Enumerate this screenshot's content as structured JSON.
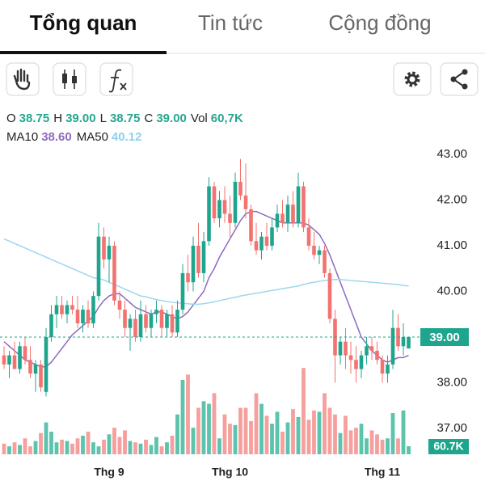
{
  "tabs": [
    "Tổng quan",
    "Tin tức",
    "Cộng đồng"
  ],
  "header": {
    "items": [
      {
        "label": "O",
        "value": "38.75"
      },
      {
        "label": "H",
        "value": "39.00"
      },
      {
        "label": "L",
        "value": "38.75"
      },
      {
        "label": "C",
        "value": "39.00"
      },
      {
        "label": "Vol",
        "value": "60,7K"
      }
    ],
    "ma": [
      {
        "label": "MA10",
        "value": "38.60"
      },
      {
        "label": "MA50",
        "value": "40.12"
      }
    ]
  },
  "chart_data": {
    "type": "candlestick",
    "ylim": [
      37,
      43
    ],
    "yticks": [
      {
        "value": 37,
        "label": "37.00"
      },
      {
        "value": 38,
        "label": "38.00"
      },
      {
        "value": 39,
        "label": "39.00"
      },
      {
        "value": 40,
        "label": "40.00"
      },
      {
        "value": 41,
        "label": "41.00"
      },
      {
        "value": 42,
        "label": "42.00"
      },
      {
        "value": 43,
        "label": "43.00"
      }
    ],
    "xticks": [
      {
        "value": 20,
        "label": "Thg 9"
      },
      {
        "value": 43,
        "label": "Thg 10"
      },
      {
        "value": 72,
        "label": "Thg 11"
      }
    ],
    "up_color": "#1fa58d",
    "down_color": "#f2736f",
    "candles": [
      [
        38.6,
        38.8,
        38.3,
        38.4
      ],
      [
        38.4,
        38.7,
        38.1,
        38.6
      ],
      [
        38.6,
        38.9,
        38.3,
        38.3
      ],
      [
        38.3,
        38.9,
        38.2,
        38.8
      ],
      [
        38.8,
        39.0,
        38.4,
        38.5
      ],
      [
        38.5,
        38.8,
        38.1,
        38.2
      ],
      [
        38.2,
        38.5,
        37.8,
        38.4
      ],
      [
        38.4,
        38.5,
        37.8,
        37.9
      ],
      [
        37.8,
        39.2,
        37.7,
        39.0
      ],
      [
        39.0,
        39.7,
        38.9,
        39.5
      ],
      [
        39.5,
        39.9,
        39.2,
        39.7
      ],
      [
        39.7,
        39.9,
        39.4,
        39.5
      ],
      [
        39.5,
        39.8,
        39.3,
        39.7
      ],
      [
        39.7,
        39.9,
        39.5,
        39.6
      ],
      [
        39.6,
        39.9,
        39.2,
        39.3
      ],
      [
        39.3,
        39.7,
        39.1,
        39.6
      ],
      [
        39.6,
        39.8,
        39.2,
        39.3
      ],
      [
        39.3,
        40.0,
        39.2,
        39.9
      ],
      [
        39.9,
        41.5,
        39.8,
        41.2
      ],
      [
        41.2,
        41.4,
        40.5,
        40.7
      ],
      [
        40.7,
        41.2,
        40.2,
        41.0
      ],
      [
        41.0,
        41.1,
        39.7,
        39.8
      ],
      [
        39.8,
        40.0,
        39.4,
        39.6
      ],
      [
        39.6,
        39.8,
        39.0,
        39.2
      ],
      [
        39.2,
        39.5,
        38.7,
        39.4
      ],
      [
        39.4,
        39.6,
        38.9,
        39.0
      ],
      [
        39.0,
        39.8,
        38.9,
        39.5
      ],
      [
        39.5,
        39.7,
        39.1,
        39.2
      ],
      [
        39.2,
        39.6,
        39.0,
        39.5
      ],
      [
        39.5,
        39.8,
        39.3,
        39.6
      ],
      [
        39.6,
        39.7,
        39.0,
        39.2
      ],
      [
        39.2,
        39.6,
        39.0,
        39.5
      ],
      [
        39.5,
        39.7,
        39.0,
        39.1
      ],
      [
        39.1,
        39.8,
        39.0,
        39.6
      ],
      [
        39.6,
        40.6,
        39.5,
        40.4
      ],
      [
        40.4,
        40.8,
        40.0,
        40.2
      ],
      [
        40.2,
        41.2,
        40.0,
        41.0
      ],
      [
        41.0,
        41.5,
        40.3,
        40.4
      ],
      [
        40.4,
        41.3,
        40.2,
        41.1
      ],
      [
        41.1,
        42.5,
        41.0,
        42.3
      ],
      [
        42.3,
        42.4,
        41.5,
        41.6
      ],
      [
        41.6,
        42.2,
        41.4,
        42.0
      ],
      [
        42.0,
        42.3,
        41.5,
        41.7
      ],
      [
        41.7,
        42.1,
        41.2,
        41.5
      ],
      [
        41.5,
        42.6,
        41.4,
        42.4
      ],
      [
        42.4,
        42.9,
        42.0,
        42.1
      ],
      [
        42.1,
        42.8,
        41.6,
        41.8
      ],
      [
        41.8,
        41.9,
        41.0,
        41.1
      ],
      [
        41.1,
        41.5,
        40.8,
        40.9
      ],
      [
        40.9,
        41.3,
        40.7,
        41.2
      ],
      [
        41.2,
        41.5,
        40.9,
        41.0
      ],
      [
        41.0,
        41.6,
        40.9,
        41.4
      ],
      [
        41.4,
        41.9,
        41.3,
        41.7
      ],
      [
        41.7,
        42.0,
        41.4,
        41.5
      ],
      [
        41.5,
        42.1,
        41.3,
        41.9
      ],
      [
        41.9,
        42.2,
        41.4,
        41.5
      ],
      [
        41.5,
        42.6,
        41.4,
        42.3
      ],
      [
        42.3,
        42.4,
        41.3,
        41.4
      ],
      [
        41.4,
        41.6,
        40.9,
        41.0
      ],
      [
        41.0,
        41.3,
        40.7,
        40.8
      ],
      [
        40.8,
        41.0,
        40.6,
        40.9
      ],
      [
        40.9,
        41.0,
        40.3,
        40.4
      ],
      [
        40.4,
        40.5,
        39.3,
        39.4
      ],
      [
        39.4,
        39.6,
        38.0,
        38.6
      ],
      [
        38.6,
        39.0,
        38.4,
        38.9
      ],
      [
        38.9,
        39.2,
        38.3,
        38.6
      ],
      [
        38.6,
        38.9,
        38.2,
        38.5
      ],
      [
        38.5,
        38.8,
        38.0,
        38.3
      ],
      [
        38.3,
        38.7,
        38.1,
        38.6
      ],
      [
        38.6,
        39.0,
        38.4,
        38.8
      ],
      [
        38.8,
        39.0,
        38.5,
        38.7
      ],
      [
        38.7,
        38.9,
        38.4,
        38.5
      ],
      [
        38.5,
        38.6,
        38.0,
        38.2
      ],
      [
        38.2,
        38.6,
        38.0,
        38.4
      ],
      [
        38.4,
        39.6,
        38.3,
        39.2
      ],
      [
        39.2,
        39.5,
        38.7,
        38.8
      ],
      [
        38.8,
        39.3,
        38.6,
        39.0
      ],
      [
        38.75,
        39.0,
        38.75,
        39.0
      ]
    ],
    "series": [
      {
        "name": "MA10",
        "color": "#8e6bbf",
        "values": [
          38.9,
          38.8,
          38.7,
          38.6,
          38.5,
          38.45,
          38.4,
          38.35,
          38.35,
          38.45,
          38.6,
          38.75,
          38.9,
          39.05,
          39.15,
          39.25,
          39.35,
          39.45,
          39.65,
          39.8,
          39.9,
          39.95,
          39.95,
          39.85,
          39.75,
          39.65,
          39.6,
          39.55,
          39.5,
          39.55,
          39.55,
          39.5,
          39.45,
          39.4,
          39.45,
          39.55,
          39.7,
          39.85,
          40.0,
          40.3,
          40.5,
          40.75,
          40.95,
          41.15,
          41.35,
          41.55,
          41.7,
          41.75,
          41.75,
          41.7,
          41.65,
          41.6,
          41.55,
          41.5,
          41.5,
          41.5,
          41.5,
          41.5,
          41.45,
          41.35,
          41.25,
          41.05,
          40.8,
          40.5,
          40.2,
          39.9,
          39.6,
          39.3,
          39.0,
          38.85,
          38.7,
          38.6,
          38.5,
          38.45,
          38.5,
          38.55,
          38.55,
          38.6
        ]
      },
      {
        "name": "MA50",
        "color": "#9fd6ee",
        "values": [
          41.15,
          41.1,
          41.05,
          41.0,
          40.95,
          40.9,
          40.85,
          40.8,
          40.75,
          40.7,
          40.65,
          40.6,
          40.55,
          40.5,
          40.45,
          40.4,
          40.35,
          40.3,
          40.28,
          40.25,
          40.2,
          40.15,
          40.1,
          40.05,
          40.0,
          39.95,
          39.9,
          39.88,
          39.85,
          39.82,
          39.8,
          39.78,
          39.76,
          39.75,
          39.74,
          39.73,
          39.72,
          39.72,
          39.73,
          39.75,
          39.77,
          39.8,
          39.82,
          39.85,
          39.87,
          39.9,
          39.92,
          39.94,
          39.96,
          39.98,
          40.0,
          40.02,
          40.04,
          40.06,
          40.08,
          40.1,
          40.12,
          40.15,
          40.18,
          40.2,
          40.22,
          40.24,
          40.25,
          40.26,
          40.26,
          40.25,
          40.24,
          40.23,
          40.22,
          40.21,
          40.2,
          40.19,
          40.18,
          40.17,
          40.16,
          40.15,
          40.13,
          40.12
        ]
      }
    ],
    "volume": [
      80,
      60,
      90,
      70,
      120,
      60,
      100,
      160,
      240,
      170,
      90,
      110,
      100,
      80,
      120,
      140,
      170,
      90,
      60,
      110,
      150,
      200,
      130,
      180,
      100,
      90,
      80,
      110,
      70,
      130,
      60,
      90,
      140,
      300,
      560,
      600,
      200,
      350,
      400,
      380,
      460,
      120,
      300,
      230,
      220,
      350,
      350,
      250,
      460,
      380,
      290,
      230,
      320,
      170,
      240,
      340,
      280,
      650,
      260,
      330,
      320,
      460,
      350,
      300,
      160,
      290,
      180,
      200,
      230,
      120,
      180,
      150,
      110,
      120,
      310,
      120,
      330,
      60.7
    ],
    "vlim": [
      0,
      700
    ],
    "price_tag": "39.00",
    "volume_tag": "60.7K"
  }
}
